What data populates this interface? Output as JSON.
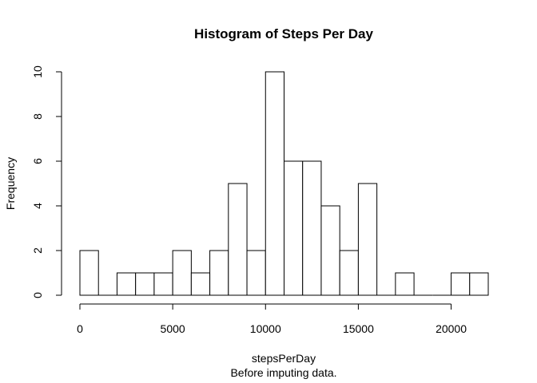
{
  "chart_data": {
    "type": "bar",
    "title": "Histogram of Steps Per Day",
    "xlabel": "stepsPerDay",
    "subtitle": "Before imputing data.",
    "ylabel": "Frequency",
    "bin_edges": [
      0,
      1000,
      2000,
      3000,
      4000,
      5000,
      6000,
      7000,
      8000,
      9000,
      10000,
      11000,
      12000,
      13000,
      14000,
      15000,
      16000,
      17000,
      18000,
      19000,
      20000,
      21000,
      22000
    ],
    "values": [
      2,
      0,
      1,
      1,
      1,
      2,
      1,
      2,
      5,
      2,
      10,
      6,
      6,
      4,
      2,
      5,
      0,
      1,
      0,
      0,
      1,
      1
    ],
    "xticks": [
      0,
      5000,
      10000,
      15000,
      20000
    ],
    "yticks": [
      0,
      2,
      4,
      6,
      8,
      10
    ],
    "xlim": [
      0,
      22000
    ],
    "ylim": [
      0,
      10
    ],
    "grid": false,
    "bar_fill": "#ffffff",
    "bar_stroke": "#000000"
  }
}
